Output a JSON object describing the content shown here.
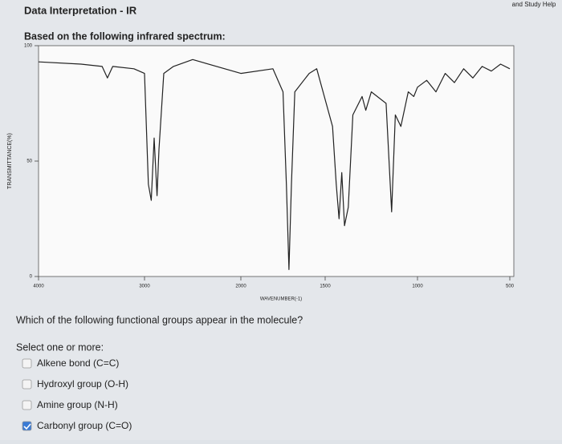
{
  "header": {
    "title": "Data Interpretation - IR",
    "prompt": "Based on the following infrared spectrum:",
    "corner": "and Study Help"
  },
  "chart_data": {
    "type": "line",
    "x_label": "WAVENUMBER(-1)",
    "y_label": "TRANSMITTANCE(%)",
    "x": [
      4000,
      3600,
      3400,
      3350,
      3300,
      3100,
      3000,
      2960,
      2930,
      2900,
      2870,
      2850,
      2800,
      2700,
      2500,
      2000,
      1810,
      1750,
      1730,
      1715,
      1700,
      1680,
      1595,
      1550,
      1460,
      1440,
      1425,
      1410,
      1395,
      1375,
      1350,
      1300,
      1280,
      1250,
      1170,
      1140,
      1120,
      1090,
      1050,
      1020,
      1000,
      950,
      900,
      850,
      800,
      750,
      700,
      650,
      600,
      550,
      500
    ],
    "values": [
      93,
      92,
      91,
      86,
      91,
      90,
      88,
      40,
      33,
      60,
      35,
      55,
      88,
      91,
      94,
      88,
      90,
      80,
      40,
      3,
      40,
      80,
      88,
      90,
      65,
      40,
      25,
      45,
      22,
      30,
      70,
      78,
      72,
      80,
      75,
      28,
      70,
      65,
      80,
      78,
      82,
      85,
      80,
      88,
      84,
      90,
      86,
      91,
      89,
      92,
      90
    ],
    "color": "#222222",
    "xlim": [
      4000,
      500
    ],
    "xticks": [
      4000,
      3000,
      2000,
      1500,
      1000,
      500
    ],
    "ylim": [
      0,
      100
    ],
    "yticks": [
      0,
      50,
      100
    ]
  },
  "question": {
    "text": "Which of the following functional groups appear in the molecule?",
    "instruction": "Select one or more:"
  },
  "options": [
    {
      "label": "Alkene bond (C=C)",
      "checked": false
    },
    {
      "label": "Hydroxyl group (O-H)",
      "checked": false
    },
    {
      "label": "Amine group (N-H)",
      "checked": false
    },
    {
      "label": "Carbonyl group (C=O)",
      "checked": true
    }
  ]
}
